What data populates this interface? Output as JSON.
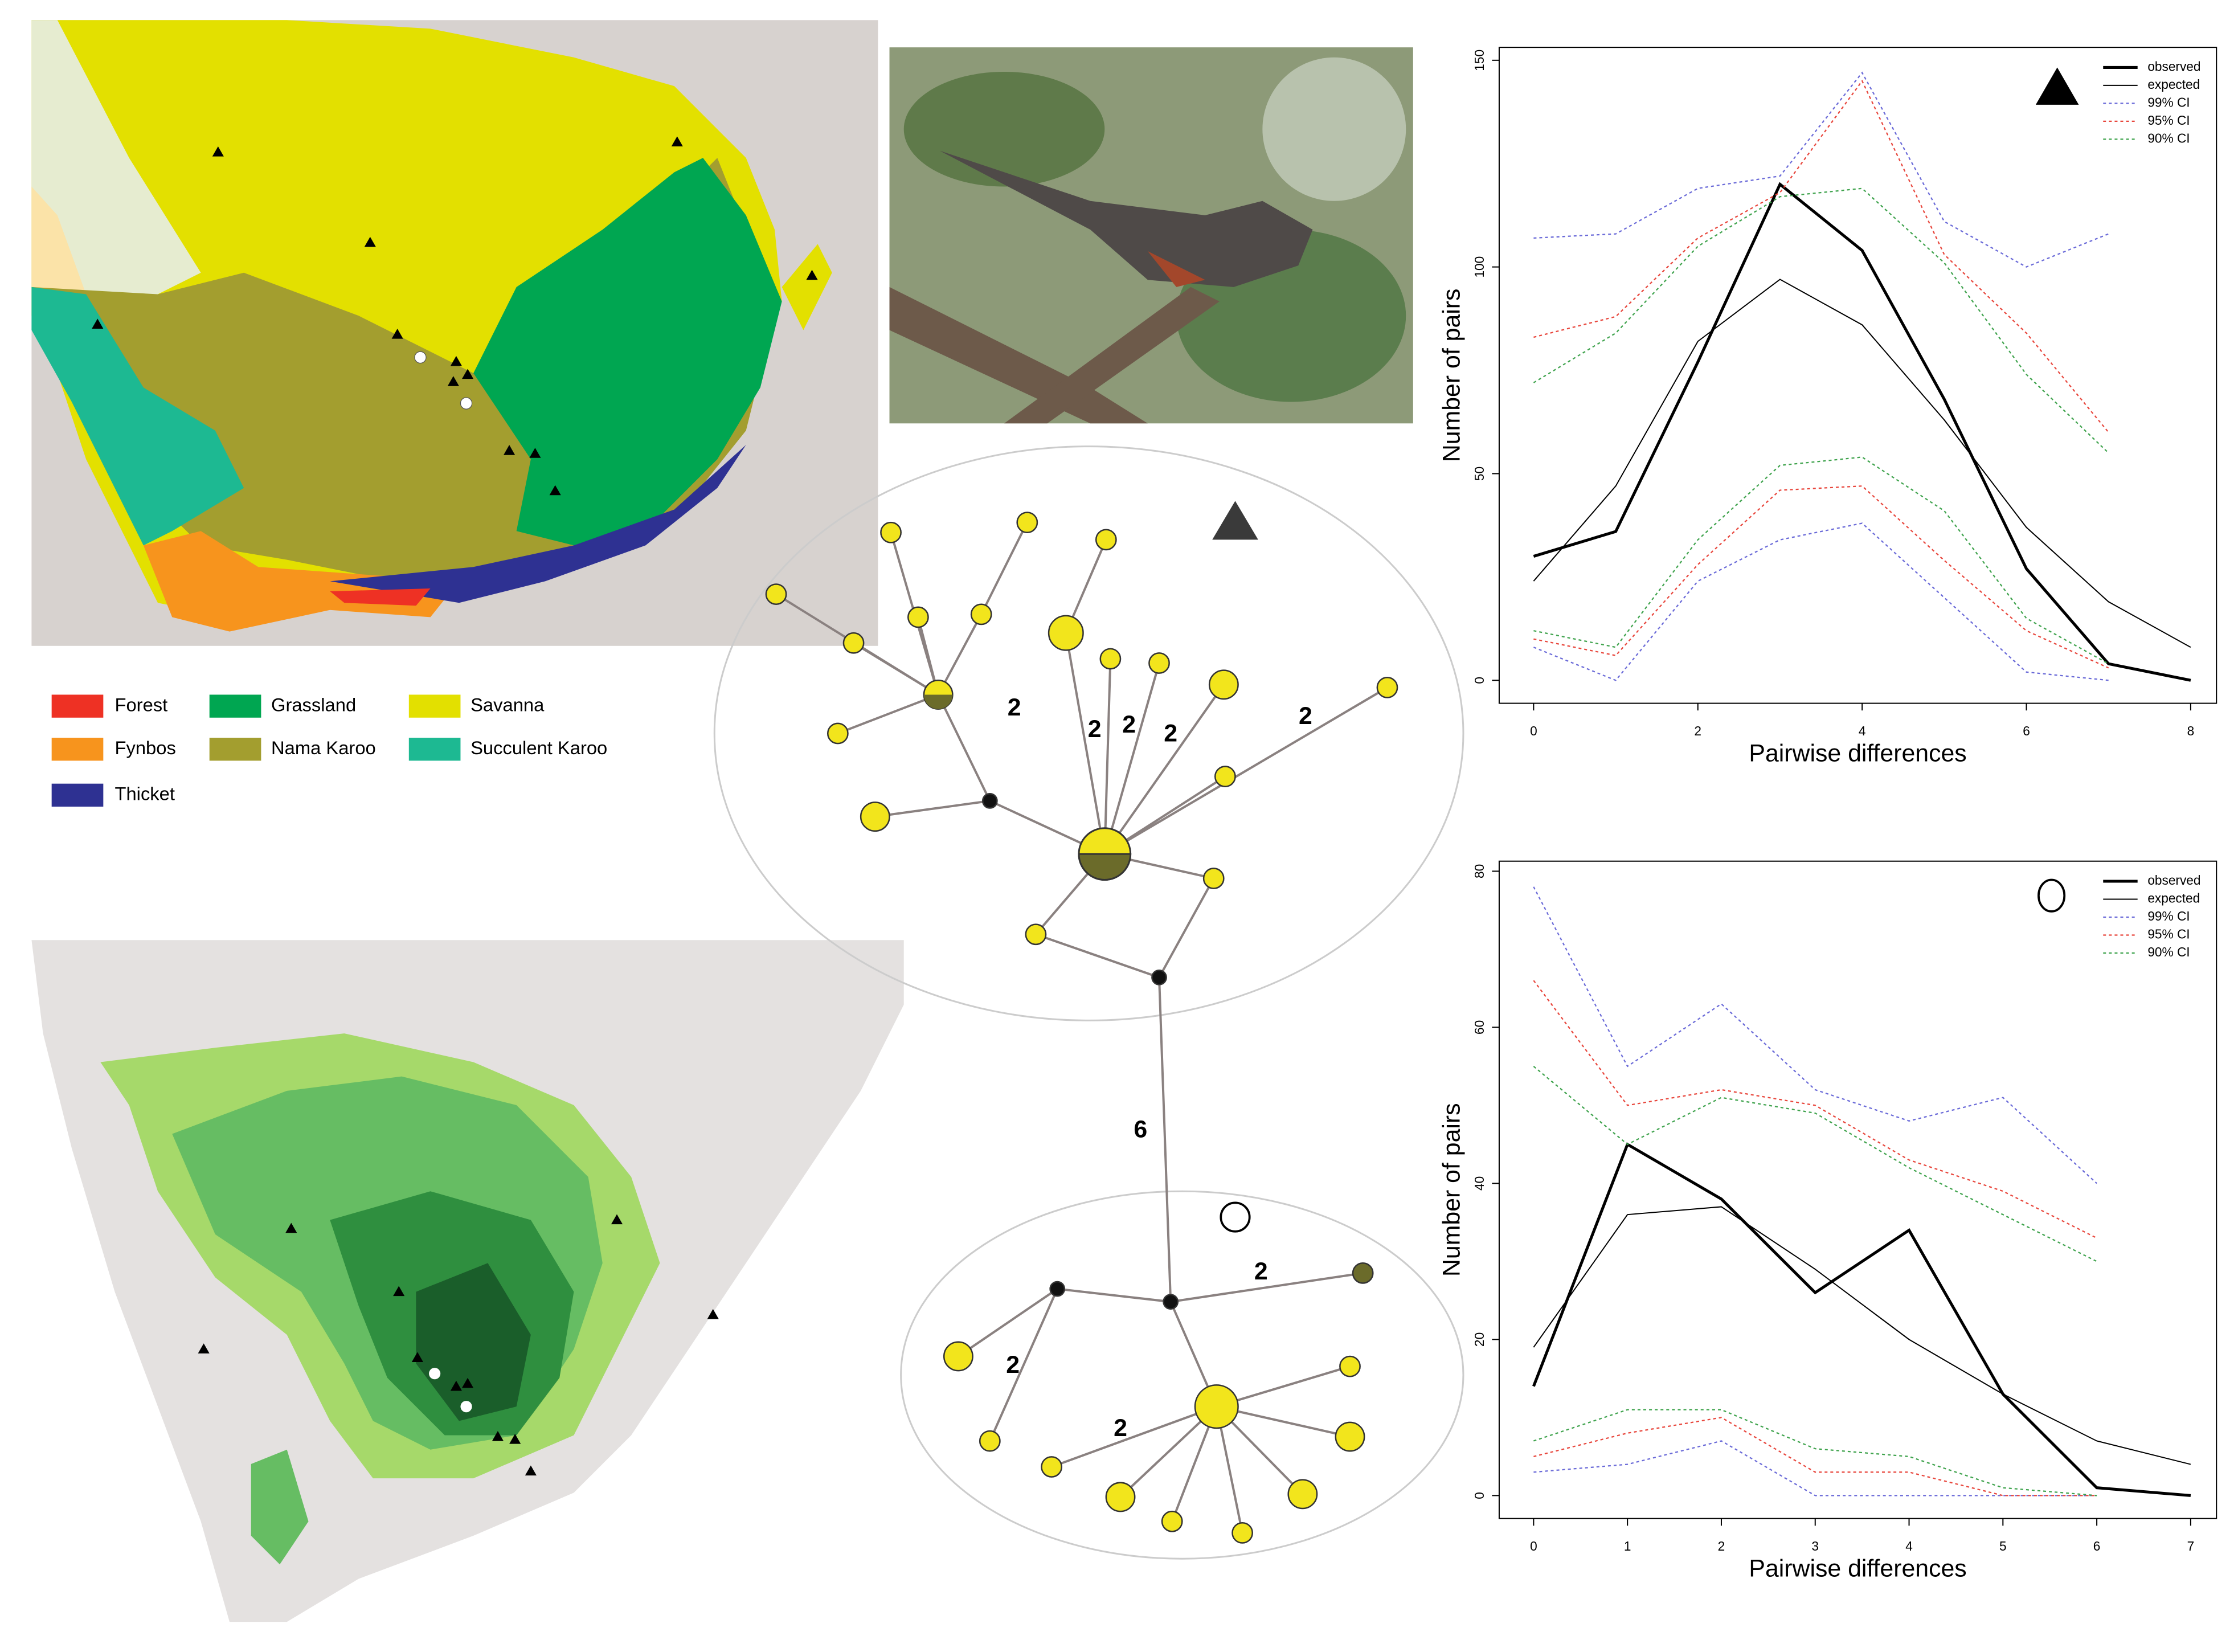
{
  "chart_data": [
    {
      "type": "line",
      "xlabel": "Pairwise differences",
      "ylabel": "Number of pairs",
      "x": [
        0,
        1,
        2,
        3,
        4,
        5,
        6,
        7,
        8
      ],
      "xlim": [
        0,
        8
      ],
      "xticks": [
        0,
        2,
        4,
        6,
        8
      ],
      "ylim": [
        0,
        150
      ],
      "yticks": [
        0,
        50,
        100,
        150
      ],
      "series": [
        {
          "name": "observed",
          "color": "#000000",
          "values": [
            30,
            36,
            77,
            120,
            104,
            68,
            27,
            4,
            0
          ]
        },
        {
          "name": "expected",
          "color": "#000000",
          "values": [
            24,
            47,
            82,
            97,
            86,
            63,
            37,
            19,
            8
          ]
        },
        {
          "name": "99% CI",
          "color": "#6a6ad8",
          "values": [
            107,
            108,
            119,
            122,
            147,
            111,
            100,
            108,
            null
          ],
          "lower": [
            8,
            0,
            24,
            34,
            38,
            20,
            2,
            0,
            null
          ]
        },
        {
          "name": "95% CI",
          "color": "#e8463c",
          "values": [
            83,
            88,
            107,
            118,
            145,
            103,
            84,
            60,
            null
          ],
          "lower": [
            10,
            6,
            28,
            46,
            47,
            29,
            12,
            3,
            null
          ]
        },
        {
          "name": "90% CI",
          "color": "#3fa34d",
          "values": [
            72,
            84,
            105,
            117,
            119,
            101,
            74,
            55,
            null
          ],
          "lower": [
            12,
            8,
            34,
            52,
            54,
            41,
            15,
            4,
            null
          ]
        }
      ]
    },
    {
      "type": "line",
      "xlabel": "Pairwise differences",
      "ylabel": "Number of pairs",
      "x": [
        0,
        1,
        2,
        3,
        4,
        5,
        6,
        7
      ],
      "xlim": [
        0,
        7
      ],
      "xticks": [
        0,
        1,
        2,
        3,
        4,
        5,
        6,
        7
      ],
      "ylim": [
        0,
        80
      ],
      "yticks": [
        0,
        20,
        40,
        60,
        80
      ],
      "series": [
        {
          "name": "observed",
          "color": "#000000",
          "values": [
            14,
            45,
            38,
            26,
            34,
            13,
            1,
            0
          ]
        },
        {
          "name": "expected",
          "color": "#000000",
          "values": [
            19,
            36,
            37,
            29,
            20,
            13,
            7,
            4
          ]
        },
        {
          "name": "99% CI",
          "color": "#6a6ad8",
          "values": [
            78,
            55,
            63,
            52,
            48,
            51,
            40,
            null
          ],
          "lower": [
            3,
            4,
            7,
            0,
            0,
            0,
            0,
            null
          ]
        },
        {
          "name": "95% CI",
          "color": "#e8463c",
          "values": [
            66,
            50,
            52,
            50,
            43,
            39,
            33,
            null
          ],
          "lower": [
            5,
            8,
            10,
            3,
            3,
            0,
            0,
            null
          ]
        },
        {
          "name": "90% CI",
          "color": "#3fa34d",
          "values": [
            55,
            45,
            51,
            49,
            42,
            36,
            30,
            null
          ],
          "lower": [
            7,
            11,
            11,
            6,
            5,
            1,
            0,
            null
          ]
        }
      ]
    }
  ],
  "legend": {
    "items": [
      {
        "label": "Forest",
        "color": "#ee3124"
      },
      {
        "label": "Fynbos",
        "color": "#f7941d"
      },
      {
        "label": "Thicket",
        "color": "#2e3192"
      },
      {
        "label": "Grassland",
        "color": "#00a651"
      },
      {
        "label": "Nama Karoo",
        "color": "#a39e2f"
      },
      {
        "label": "Savanna",
        "color": "#e3e000"
      },
      {
        "label": "Succulent Karoo",
        "color": "#1db992"
      }
    ]
  },
  "network": {
    "edge_labels": [
      "2",
      "2",
      "2",
      "2",
      "2",
      "6",
      "2",
      "2",
      "2"
    ]
  }
}
